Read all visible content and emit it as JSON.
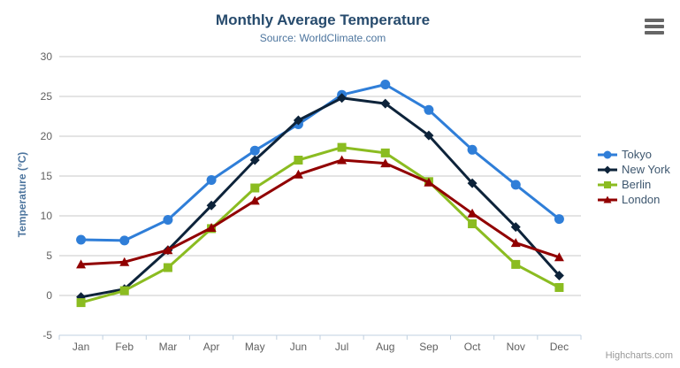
{
  "header": {
    "title": "Monthly Average Temperature",
    "subtitle": "Source: WorldClimate.com"
  },
  "export_menu": {
    "icon": "hamburger-icon"
  },
  "credits": {
    "label": "Highcharts.com"
  },
  "colors": {
    "title": "#274b6d",
    "subtitle": "#4d759e",
    "axis_label": "#606060",
    "gridline": "#c9c9c9",
    "axis_line": "#c0d0e0",
    "legend_text": "#3E576F",
    "credits_text": "#999999",
    "burger": "#666666"
  },
  "chart_data": {
    "type": "line",
    "title": "Monthly Average Temperature",
    "subtitle": "Source: WorldClimate.com",
    "xlabel": "",
    "ylabel": "Temperature (°C)",
    "categories": [
      "Jan",
      "Feb",
      "Mar",
      "Apr",
      "May",
      "Jun",
      "Jul",
      "Aug",
      "Sep",
      "Oct",
      "Nov",
      "Dec"
    ],
    "ylim": [
      -5,
      30
    ],
    "yticks": [
      -5,
      0,
      5,
      10,
      15,
      20,
      25,
      30
    ],
    "grid": true,
    "legend_position": "right",
    "series": [
      {
        "name": "Tokyo",
        "color": "#2f7ed8",
        "marker": "circle",
        "values": [
          7.0,
          6.9,
          9.5,
          14.5,
          18.2,
          21.5,
          25.2,
          26.5,
          23.3,
          18.3,
          13.9,
          9.6
        ]
      },
      {
        "name": "New York",
        "color": "#0d233a",
        "marker": "diamond",
        "values": [
          -0.2,
          0.8,
          5.7,
          11.3,
          17.0,
          22.0,
          24.8,
          24.1,
          20.1,
          14.1,
          8.6,
          2.5
        ]
      },
      {
        "name": "Berlin",
        "color": "#8bbc21",
        "marker": "square",
        "values": [
          -0.9,
          0.6,
          3.5,
          8.4,
          13.5,
          17.0,
          18.6,
          17.9,
          14.3,
          9.0,
          3.9,
          1.0
        ]
      },
      {
        "name": "London",
        "color": "#910000",
        "marker": "triangle",
        "values": [
          3.9,
          4.2,
          5.7,
          8.5,
          11.9,
          15.2,
          17.0,
          16.6,
          14.2,
          10.3,
          6.6,
          4.8
        ]
      }
    ]
  }
}
